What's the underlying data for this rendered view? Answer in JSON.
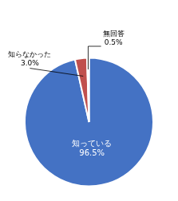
{
  "chart_data": {
    "type": "pie",
    "categories": [
      "知っている",
      "知らなかった",
      "無回答"
    ],
    "values": [
      96.5,
      3.0,
      0.5
    ],
    "value_labels": [
      "96.5%",
      "3.0%",
      "0.5%"
    ],
    "colors": [
      "#4472C4",
      "#C0504D",
      "#9BBB59"
    ],
    "data_labels": true,
    "legend": false
  }
}
